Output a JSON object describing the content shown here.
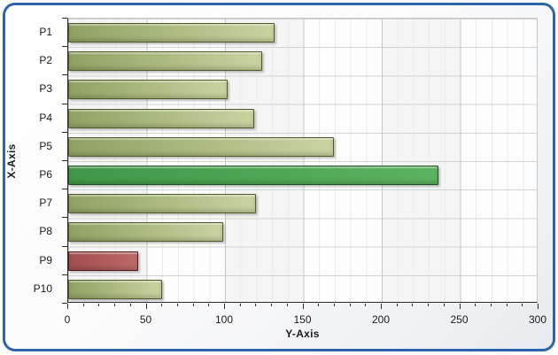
{
  "panel": {
    "border_color": "#2b65a7",
    "background_top": "#ffffff",
    "background_bottom": "#e7eaee"
  },
  "chart_data": {
    "type": "bar",
    "orientation": "horizontal",
    "title": "",
    "category_axis_title": "X-Axis",
    "value_axis_title": "Y-Axis",
    "categories": [
      "P1",
      "P2",
      "P3",
      "P4",
      "P5",
      "P6",
      "P7",
      "P8",
      "P9",
      "P10"
    ],
    "values": [
      132,
      124,
      102,
      119,
      170,
      237,
      120,
      99,
      45,
      60
    ],
    "value_range": [
      0,
      300
    ],
    "value_axis_ticks": [
      0,
      50,
      100,
      150,
      200,
      250,
      300
    ],
    "minor_tick_step": 10,
    "grid": "major and minor vertical, row separators, interlaced bands",
    "legend_position": "none",
    "bar_color_keys": [
      "default",
      "default",
      "default",
      "default",
      "default",
      "highlight",
      "default",
      "default",
      "low",
      "default"
    ],
    "palette": {
      "default": {
        "from": "#8fa263",
        "to": "#c9d3a0",
        "border": "#4f5a28"
      },
      "highlight": {
        "from": "#3f9747",
        "to": "#5db261",
        "border": "#1d5222"
      },
      "low": {
        "from": "#a34d4d",
        "to": "#bd6a6a",
        "border": "#531a1a"
      }
    }
  }
}
